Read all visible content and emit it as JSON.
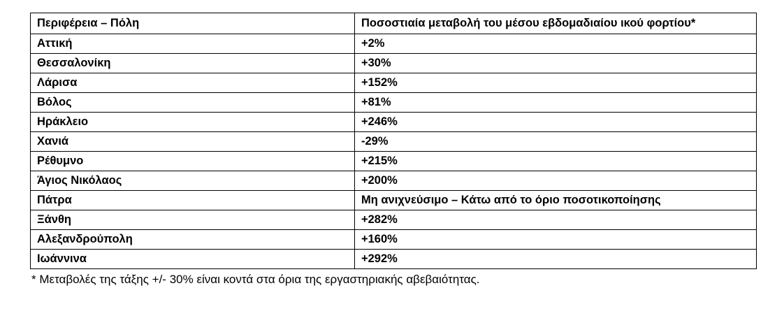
{
  "table": {
    "headers": {
      "region": "Περιφέρεια – Πόλη",
      "change": "Ποσοστιαία μεταβολή του μέσου εβδομαδιαίου ικού φορτίου*"
    },
    "rows": [
      {
        "region": "Αττική",
        "change": "+2%"
      },
      {
        "region": "Θεσσαλονίκη",
        "change": "+30%"
      },
      {
        "region": "Λάρισα",
        "change": "+152%"
      },
      {
        "region": "Βόλος",
        "change": "+81%"
      },
      {
        "region": "Ηράκλειο",
        "change": "+246%"
      },
      {
        "region": "Χανιά",
        "change": "-29%"
      },
      {
        "region": "Ρέθυμνο",
        "change": "+215%"
      },
      {
        "region": "Άγιος Νικόλαος",
        "change": "+200%"
      },
      {
        "region": "Πάτρα",
        "change": "Μη ανιχνεύσιμο – Κάτω από το όριο ποσοτικοποίησης"
      },
      {
        "region": "Ξάνθη",
        "change": "+282%"
      },
      {
        "region": "Αλεξανδρούπολη",
        "change": "+160%"
      },
      {
        "region": "Ιωάννινα",
        "change": "+292%"
      }
    ]
  },
  "footnote": "* Μεταβολές της τάξης +/- 30% είναι κοντά στα όρια της εργαστηριακής αβεβαιότητας."
}
